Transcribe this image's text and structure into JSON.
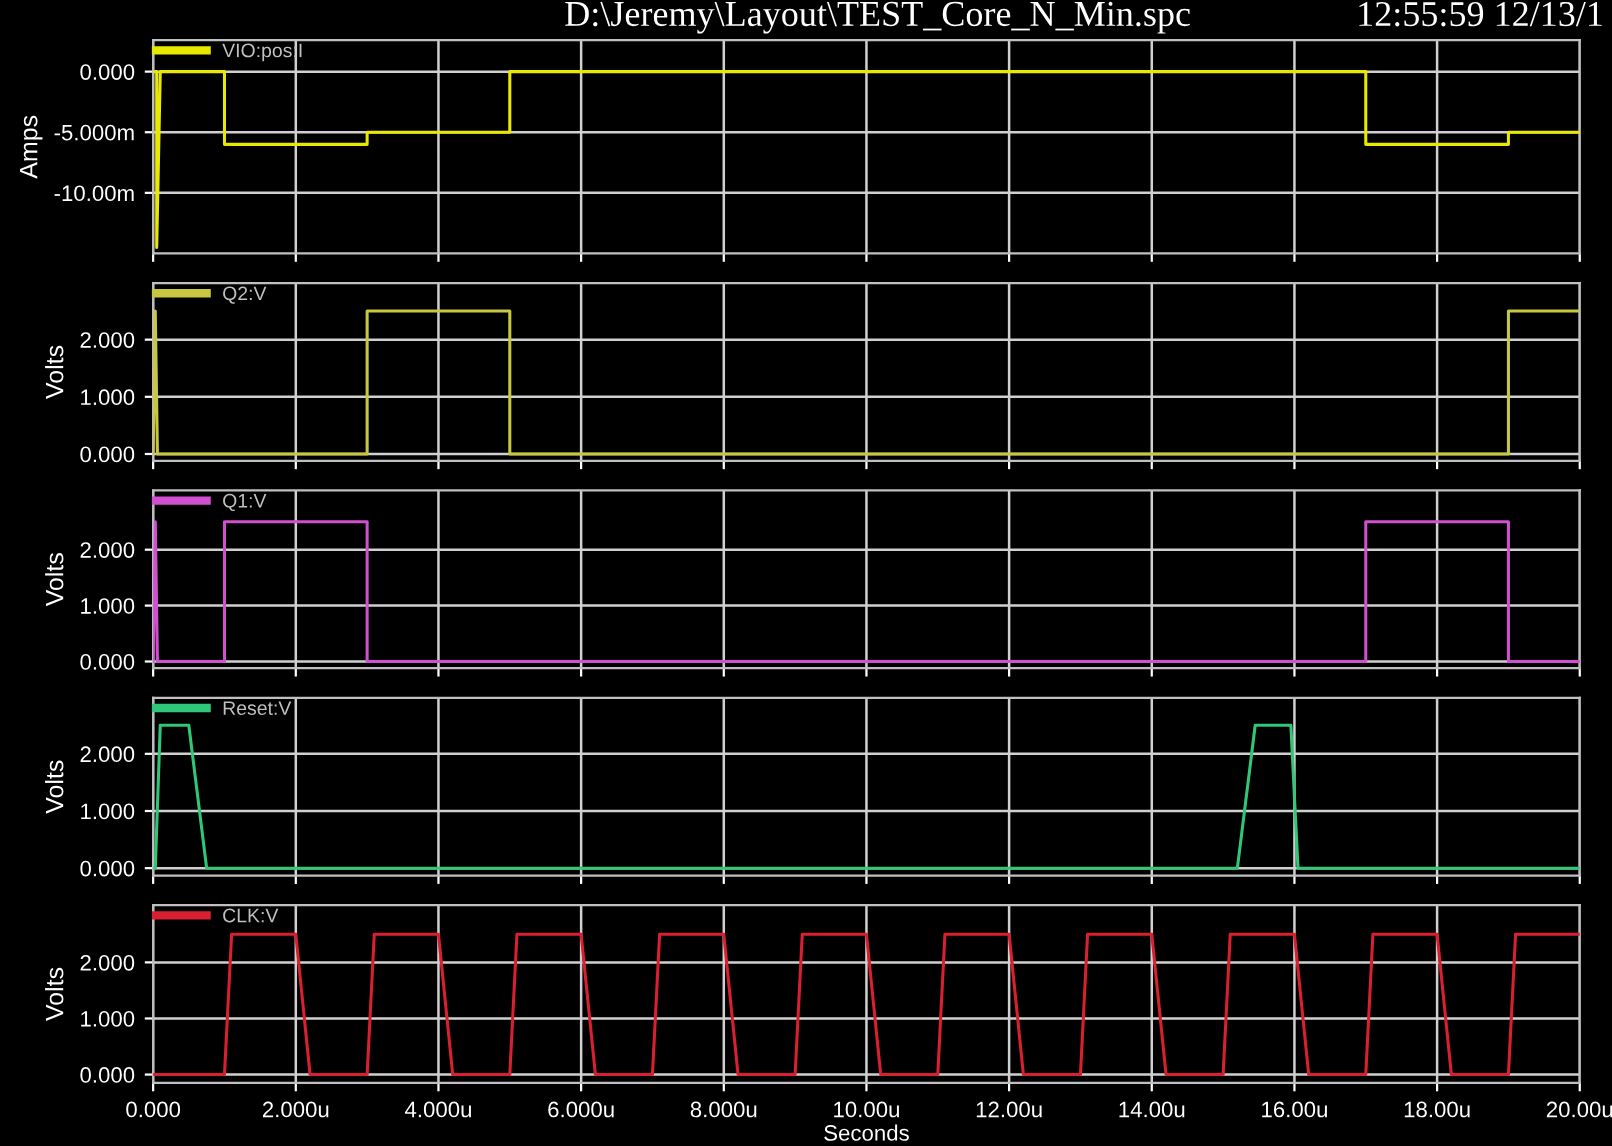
{
  "chart_data": [
    {
      "type": "line",
      "title": "D:\\Jeremy\\Layout\\TEST_Core_N_Min.spc",
      "annotations": [
        "12:55:59 12/13/1"
      ],
      "ylabel": "Amps",
      "legend": "top left",
      "grid": true,
      "tick_labels": "y",
      "xlim": [
        0,
        20
      ],
      "xticks": [
        0,
        2,
        4,
        6,
        8,
        10,
        12,
        14,
        16,
        18,
        20
      ],
      "ylim": [
        -15,
        2.6
      ],
      "yticks": [
        {
          "value": 0,
          "label": "0.000"
        },
        {
          "value": -5,
          "label": "-5.000m"
        },
        {
          "value": -10,
          "label": "-10.00m"
        }
      ],
      "series": [
        {
          "name": "VIO:pos:I",
          "color": "#e8e800",
          "x": [
            0,
            0.05,
            0.05,
            0.1,
            1,
            1,
            3,
            3,
            5,
            5,
            17,
            17,
            19,
            19,
            20
          ],
          "values": [
            0,
            0,
            -14.5,
            0,
            0,
            -6,
            -6,
            -5,
            -5,
            0,
            0,
            -6,
            -6,
            -5,
            -5
          ]
        }
      ]
    },
    {
      "type": "line",
      "ylabel": "Volts",
      "legend": "top left",
      "grid": true,
      "tick_labels": "y",
      "xlim": [
        0,
        20
      ],
      "xticks": [
        0,
        2,
        4,
        6,
        8,
        10,
        12,
        14,
        16,
        18,
        20
      ],
      "ylim": [
        -0.12,
        2.99
      ],
      "yticks": [
        {
          "value": 0,
          "label": "0.000"
        },
        {
          "value": 1,
          "label": "1.000"
        },
        {
          "value": 2,
          "label": "2.000"
        }
      ],
      "series": [
        {
          "name": "Q2:V",
          "color": "#c8c840",
          "x": [
            0,
            0.03,
            0.06,
            3,
            3,
            5,
            5,
            19,
            19,
            20
          ],
          "values": [
            0,
            2.5,
            0,
            0,
            2.5,
            2.5,
            0,
            0,
            2.5,
            2.5
          ]
        }
      ]
    },
    {
      "type": "line",
      "ylabel": "Volts",
      "legend": "top left",
      "grid": true,
      "tick_labels": "y",
      "xlim": [
        0,
        20
      ],
      "xticks": [
        0,
        2,
        4,
        6,
        8,
        10,
        12,
        14,
        16,
        18,
        20
      ],
      "ylim": [
        -0.12,
        3.06
      ],
      "yticks": [
        {
          "value": 0,
          "label": "0.000"
        },
        {
          "value": 1,
          "label": "1.000"
        },
        {
          "value": 2,
          "label": "2.000"
        }
      ],
      "series": [
        {
          "name": "Q1:V",
          "color": "#d050d0",
          "x": [
            0,
            0.03,
            0.06,
            1,
            1,
            3,
            3,
            17,
            17,
            19,
            19,
            20
          ],
          "values": [
            0,
            2.5,
            0,
            0,
            2.5,
            2.5,
            0,
            0,
            2.5,
            2.5,
            0,
            0
          ]
        }
      ]
    },
    {
      "type": "line",
      "ylabel": "Volts",
      "legend": "top left",
      "grid": true,
      "tick_labels": "y",
      "xlim": [
        0,
        20
      ],
      "xticks": [
        0,
        2,
        4,
        6,
        8,
        10,
        12,
        14,
        16,
        18,
        20
      ],
      "ylim": [
        -0.13,
        2.98
      ],
      "yticks": [
        {
          "value": 0,
          "label": "0.000"
        },
        {
          "value": 1,
          "label": "1.000"
        },
        {
          "value": 2,
          "label": "2.000"
        }
      ],
      "series": [
        {
          "name": "Reset:V",
          "color": "#30c878",
          "x": [
            0,
            0.03,
            0.1,
            0.5,
            0.75,
            15.2,
            15.45,
            15.95,
            16.05,
            20
          ],
          "values": [
            0,
            0,
            2.5,
            2.5,
            0,
            0,
            2.5,
            2.5,
            0,
            0
          ]
        }
      ]
    },
    {
      "type": "line",
      "ylabel": "Volts",
      "xlabel": "Seconds",
      "legend": "top left",
      "grid": true,
      "xlim": [
        0,
        20
      ],
      "xticks": [
        {
          "value": 0,
          "label": "0.000"
        },
        {
          "value": 2,
          "label": "2.000u"
        },
        {
          "value": 4,
          "label": "4.000u"
        },
        {
          "value": 6,
          "label": "6.000u"
        },
        {
          "value": 8,
          "label": "8.000u"
        },
        {
          "value": 10,
          "label": "10.00u"
        },
        {
          "value": 12,
          "label": "12.00u"
        },
        {
          "value": 14,
          "label": "14.00u"
        },
        {
          "value": 16,
          "label": "16.00u"
        },
        {
          "value": 18,
          "label": "18.00u"
        },
        {
          "value": 20,
          "label": "20.00u"
        }
      ],
      "ylim": [
        -0.15,
        3.02
      ],
      "yticks": [
        {
          "value": 0,
          "label": "0.000"
        },
        {
          "value": 1,
          "label": "1.000"
        },
        {
          "value": 2,
          "label": "2.000"
        }
      ],
      "series": [
        {
          "name": "CLK:V",
          "color": "#d82030",
          "x": [
            0,
            1,
            1.1,
            2,
            2.2,
            3,
            3.1,
            4,
            4.2,
            5,
            5.1,
            6,
            6.2,
            7,
            7.1,
            8,
            8.2,
            9,
            9.1,
            10,
            10.2,
            11,
            11.1,
            12,
            12.2,
            13,
            13.1,
            14,
            14.2,
            15,
            15.1,
            16,
            16.2,
            17,
            17.1,
            18,
            18.2,
            19,
            19.1,
            20
          ],
          "values": [
            0,
            0,
            2.5,
            2.5,
            0,
            0,
            2.5,
            2.5,
            0,
            0,
            2.5,
            2.5,
            0,
            0,
            2.5,
            2.5,
            0,
            0,
            2.5,
            2.5,
            0,
            0,
            2.5,
            2.5,
            0,
            0,
            2.5,
            2.5,
            0,
            0,
            2.5,
            2.5,
            0,
            0,
            2.5,
            2.5,
            0,
            0,
            2.5,
            2.5
          ]
        }
      ]
    }
  ]
}
